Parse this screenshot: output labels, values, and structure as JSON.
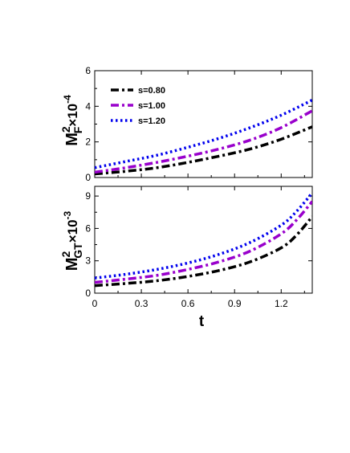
{
  "chart_data": [
    {
      "type": "line",
      "ylabel": {
        "main": "M",
        "sup": "2",
        "sub": "F",
        "factor": "×10",
        "exp": "-4"
      },
      "xlim": [
        0,
        1.4
      ],
      "ylim": [
        0,
        6
      ],
      "yticks": [
        0,
        2,
        4,
        6
      ],
      "xticks": [
        0,
        0.3,
        0.6,
        0.9,
        1.2
      ],
      "legend": "top-left",
      "series": [
        {
          "name": "s=0.80",
          "color": "#000000",
          "style": "dash-dot",
          "x": [
            0,
            0.2,
            0.4,
            0.6,
            0.8,
            1.0,
            1.2,
            1.4
          ],
          "values": [
            0.2,
            0.35,
            0.55,
            0.85,
            1.2,
            1.6,
            2.15,
            2.85
          ]
        },
        {
          "name": "s=1.00",
          "color": "#9900cc",
          "style": "dash-dot",
          "x": [
            0,
            0.2,
            0.4,
            0.6,
            0.8,
            1.0,
            1.2,
            1.4
          ],
          "values": [
            0.3,
            0.55,
            0.85,
            1.2,
            1.6,
            2.1,
            2.8,
            3.75
          ]
        },
        {
          "name": "s=1.20",
          "color": "#0000ee",
          "style": "dotted",
          "x": [
            0,
            0.2,
            0.4,
            0.6,
            0.8,
            1.0,
            1.2,
            1.4
          ],
          "values": [
            0.55,
            0.9,
            1.25,
            1.7,
            2.2,
            2.8,
            3.5,
            4.35
          ]
        }
      ]
    },
    {
      "type": "line",
      "xlabel": "t",
      "ylabel": {
        "main": "M",
        "sup": "2",
        "sub": "GT",
        "factor": "×10",
        "exp": "-3"
      },
      "xlim": [
        0,
        1.4
      ],
      "ylim": [
        0,
        9.9
      ],
      "yticks": [
        0,
        3,
        6,
        9
      ],
      "xticks": [
        0,
        0.3,
        0.6,
        0.9,
        1.2
      ],
      "series": [
        {
          "name": "s=0.80",
          "color": "#000000",
          "style": "dash-dot",
          "x": [
            0,
            0.2,
            0.4,
            0.6,
            0.8,
            1.0,
            1.2,
            1.3,
            1.4
          ],
          "values": [
            0.7,
            0.9,
            1.15,
            1.55,
            2.1,
            2.9,
            4.2,
            5.4,
            7.1
          ]
        },
        {
          "name": "s=1.00",
          "color": "#9900cc",
          "style": "dash-dot",
          "x": [
            0,
            0.2,
            0.4,
            0.6,
            0.8,
            1.0,
            1.2,
            1.3,
            1.4
          ],
          "values": [
            1.0,
            1.3,
            1.65,
            2.2,
            2.9,
            3.9,
            5.5,
            6.8,
            8.5
          ]
        },
        {
          "name": "s=1.20",
          "color": "#0000ee",
          "style": "dotted",
          "x": [
            0,
            0.2,
            0.4,
            0.6,
            0.8,
            1.0,
            1.2,
            1.3,
            1.4
          ],
          "values": [
            1.4,
            1.75,
            2.2,
            2.8,
            3.6,
            4.7,
            6.3,
            7.6,
            9.3
          ]
        }
      ]
    }
  ]
}
